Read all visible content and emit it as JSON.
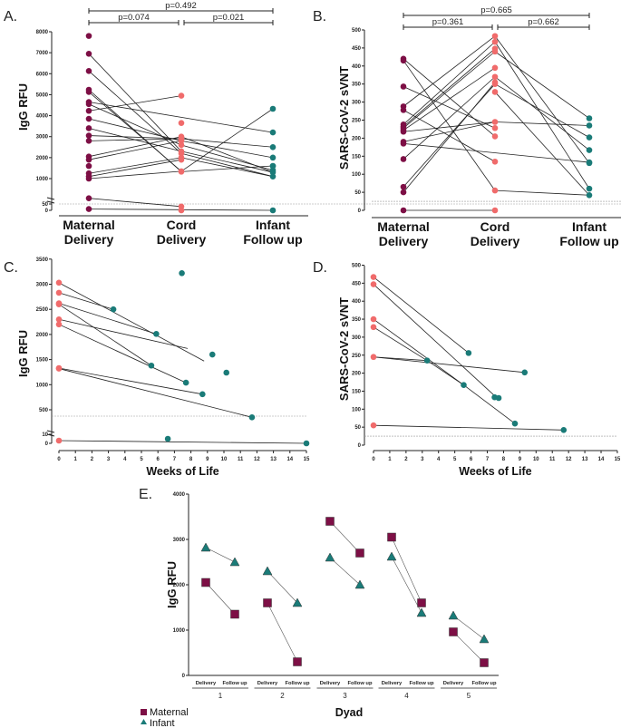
{
  "colors": {
    "maternal": "#7d0f45",
    "cord": "#f06b6b",
    "infant": "#1a7b78",
    "line": "#222222",
    "threshold": "#999999"
  },
  "chart_data": [
    {
      "panel": "A.",
      "type": "scatter",
      "ylabel": "IgG RFU",
      "categories": [
        "Maternal Delivery",
        "Cord Delivery",
        "Infant Follow up"
      ],
      "category_lines": [
        [
          "Maternal",
          "Delivery"
        ],
        [
          "Cord",
          "Delivery"
        ],
        [
          "Infant",
          "Follow up"
        ]
      ],
      "yticks": [
        0,
        50,
        1000,
        2000,
        3000,
        4000,
        5000,
        6000,
        7000,
        8000
      ],
      "axis_break": [
        50,
        1000
      ],
      "threshold": 50,
      "comparisons": [
        {
          "from": 0,
          "to": 2,
          "label": "p=0.492"
        },
        {
          "from": 0,
          "to": 1,
          "label": "p=0.074"
        },
        {
          "from": 1,
          "to": 2,
          "label": "p=0.021"
        }
      ],
      "points": [
        [
          7800,
          6950,
          6130,
          5130,
          4650,
          4550,
          4230,
          3850,
          3400,
          3050,
          2800,
          2050,
          1900,
          1600,
          1250,
          1100,
          1000,
          950,
          95,
          10
        ],
        [
          4950,
          3650,
          3000,
          2900,
          2800,
          2600,
          2300,
          2200,
          2000,
          1900,
          1350,
          1330,
          30,
          0
        ],
        [
          3200,
          2500,
          2000,
          1600,
          1400,
          1300,
          1100,
          800,
          350,
          0
        ]
      ],
      "segments": [
        [
          [
            0,
            6950
          ],
          [
            1,
            2300
          ]
        ],
        [
          [
            1,
            2300
          ],
          [
            2,
            1300
          ]
        ],
        [
          [
            0,
            6130
          ],
          [
            1,
            2200
          ]
        ],
        [
          [
            1,
            2200
          ],
          [
            2,
            1100
          ]
        ],
        [
          [
            0,
            5130
          ],
          [
            1,
            1350
          ]
        ],
        [
          [
            1,
            1350
          ],
          [
            2,
            800
          ]
        ],
        [
          [
            0,
            4650
          ],
          [
            2,
            3200
          ]
        ],
        [
          [
            0,
            4550
          ],
          [
            1,
            2600
          ]
        ],
        [
          [
            1,
            2600
          ],
          [
            2,
            1400
          ]
        ],
        [
          [
            0,
            4230
          ],
          [
            1,
            4950
          ]
        ],
        [
          [
            0,
            3850
          ],
          [
            1,
            2800
          ]
        ],
        [
          [
            1,
            2800
          ],
          [
            2,
            2000
          ]
        ],
        [
          [
            0,
            3400
          ],
          [
            1,
            2300
          ]
        ],
        [
          [
            0,
            3050
          ],
          [
            1,
            2900
          ]
        ],
        [
          [
            1,
            2900
          ],
          [
            2,
            2500
          ]
        ],
        [
          [
            0,
            2800
          ],
          [
            1,
            2900
          ]
        ],
        [
          [
            0,
            2050
          ],
          [
            1,
            3000
          ]
        ],
        [
          [
            1,
            3000
          ],
          [
            2,
            1300
          ]
        ],
        [
          [
            0,
            1900
          ],
          [
            1,
            2800
          ]
        ],
        [
          [
            0,
            1250
          ],
          [
            1,
            2000
          ]
        ],
        [
          [
            1,
            2000
          ],
          [
            2,
            1100
          ]
        ],
        [
          [
            0,
            1100
          ],
          [
            1,
            1900
          ]
        ],
        [
          [
            0,
            1000
          ],
          [
            1,
            1350
          ]
        ],
        [
          [
            1,
            1330
          ],
          [
            2,
            350
          ]
        ],
        [
          [
            0,
            950
          ],
          [
            1,
            1330
          ]
        ],
        [
          [
            0,
            95
          ],
          [
            1,
            30
          ]
        ],
        [
          [
            0,
            10
          ],
          [
            2,
            0
          ]
        ]
      ]
    },
    {
      "panel": "B.",
      "type": "scatter",
      "ylabel": "SARS-CoV-2 sVNT",
      "categories": [
        "Maternal Delivery",
        "Cord Delivery",
        "Infant Follow up"
      ],
      "category_lines": [
        [
          "Maternal",
          "Delivery"
        ],
        [
          "Cord",
          "Delivery"
        ],
        [
          "Infant",
          "Follow up"
        ]
      ],
      "yticks": [
        0,
        50,
        100,
        150,
        200,
        250,
        300,
        350,
        400,
        450,
        500
      ],
      "threshold": 25,
      "comparisons": [
        {
          "from": 0,
          "to": 2,
          "label": "p=0.665"
        },
        {
          "from": 0,
          "to": 1,
          "label": "p=0.361"
        },
        {
          "from": 1,
          "to": 2,
          "label": "p=0.662"
        }
      ],
      "points": [
        [
          420,
          415,
          343,
          288,
          278,
          238,
          232,
          228,
          222,
          218,
          190,
          185,
          142,
          65,
          50,
          0
        ],
        [
          483,
          467,
          448,
          440,
          395,
          370,
          355,
          350,
          328,
          245,
          228,
          205,
          135,
          55,
          0
        ],
        [
          255,
          235,
          202,
          167,
          133,
          131,
          60,
          42
        ]
      ],
      "segments": [
        [
          [
            0,
            420
          ],
          [
            1,
            205
          ]
        ],
        [
          [
            0,
            415
          ],
          [
            1,
            55
          ]
        ],
        [
          [
            0,
            343
          ],
          [
            1,
            228
          ]
        ],
        [
          [
            0,
            288
          ],
          [
            1,
            483
          ]
        ],
        [
          [
            0,
            278
          ],
          [
            1,
            135
          ]
        ],
        [
          [
            0,
            238
          ],
          [
            1,
            467
          ]
        ],
        [
          [
            0,
            232
          ],
          [
            1,
            448
          ]
        ],
        [
          [
            0,
            228
          ],
          [
            1,
            440
          ]
        ],
        [
          [
            0,
            222
          ],
          [
            1,
            395
          ]
        ],
        [
          [
            0,
            218
          ],
          [
            1,
            245
          ]
        ],
        [
          [
            0,
            190
          ],
          [
            1,
            245
          ]
        ],
        [
          [
            0,
            185
          ],
          [
            2,
            133
          ]
        ],
        [
          [
            0,
            142
          ],
          [
            1,
            370
          ]
        ],
        [
          [
            0,
            65
          ],
          [
            1,
            350
          ]
        ],
        [
          [
            0,
            50
          ],
          [
            1,
            355
          ]
        ],
        [
          [
            0,
            0
          ],
          [
            1,
            0
          ]
        ],
        [
          [
            1,
            483
          ],
          [
            2,
            131
          ]
        ],
        [
          [
            1,
            467
          ],
          [
            2,
            60
          ]
        ],
        [
          [
            1,
            440
          ],
          [
            2,
            255
          ]
        ],
        [
          [
            1,
            328
          ],
          [
            2,
            42
          ]
        ],
        [
          [
            1,
            245
          ],
          [
            2,
            235
          ]
        ],
        [
          [
            1,
            350
          ],
          [
            2,
            202
          ]
        ],
        [
          [
            1,
            55
          ],
          [
            2,
            42
          ]
        ],
        [
          [
            1,
            370
          ],
          [
            2,
            167
          ]
        ]
      ]
    },
    {
      "panel": "C.",
      "type": "scatter",
      "ylabel": "IgG RFU",
      "xlabel": "Weeks of Life",
      "xticks": [
        0,
        1,
        2,
        3,
        4,
        5,
        6,
        7,
        8,
        9,
        10,
        11,
        12,
        13,
        14,
        15
      ],
      "yticks": [
        0,
        10,
        500,
        1000,
        1500,
        2000,
        2500,
        3000,
        3500
      ],
      "axis_break": [
        10,
        500
      ],
      "threshold": 50,
      "cord_points": [
        [
          0,
          3030
        ],
        [
          0,
          2830
        ],
        [
          0,
          2620
        ],
        [
          0,
          2600
        ],
        [
          0,
          2300
        ],
        [
          0,
          2200
        ],
        [
          0,
          1330
        ],
        [
          0,
          1320
        ],
        [
          0,
          3
        ]
      ],
      "infant_points": [
        [
          3.3,
          2500
        ],
        [
          5.9,
          2010
        ],
        [
          7.45,
          3220
        ],
        [
          9.3,
          1600
        ],
        [
          10.15,
          1240
        ],
        [
          5.6,
          1380
        ],
        [
          7.7,
          1040
        ],
        [
          8.7,
          810
        ],
        [
          11.7,
          350
        ],
        [
          6.6,
          5
        ],
        [
          15,
          0
        ]
      ],
      "segments": [
        [
          [
            0,
            3030
          ],
          [
            8.8,
            1470
          ]
        ],
        [
          [
            0,
            2830
          ],
          [
            3.3,
            2500
          ]
        ],
        [
          [
            0,
            2620
          ],
          [
            5.9,
            2010
          ]
        ],
        [
          [
            0,
            2600
          ],
          [
            5.6,
            1380
          ]
        ],
        [
          [
            0,
            2300
          ],
          [
            7.8,
            1720
          ]
        ],
        [
          [
            0,
            2200
          ],
          [
            7.7,
            1040
          ]
        ],
        [
          [
            0,
            1330
          ],
          [
            8.7,
            810
          ]
        ],
        [
          [
            0,
            1320
          ],
          [
            11.7,
            350
          ]
        ],
        [
          [
            0,
            3
          ],
          [
            15,
            0
          ]
        ]
      ]
    },
    {
      "panel": "D.",
      "type": "scatter",
      "ylabel": "SARS-CoV-2 sVNT",
      "xlabel": "Weeks of Life",
      "xticks": [
        0,
        1,
        2,
        3,
        4,
        5,
        6,
        7,
        8,
        9,
        10,
        11,
        12,
        13,
        14,
        15
      ],
      "yticks": [
        0,
        50,
        100,
        150,
        200,
        250,
        300,
        350,
        400,
        450,
        500
      ],
      "threshold": 25,
      "cord_points": [
        [
          0,
          467
        ],
        [
          0,
          447
        ],
        [
          0,
          350
        ],
        [
          0,
          328
        ],
        [
          0,
          245
        ],
        [
          0,
          55
        ]
      ],
      "infant_points": [
        [
          5.85,
          256
        ],
        [
          3.3,
          235
        ],
        [
          9.3,
          202
        ],
        [
          5.55,
          167
        ],
        [
          7.45,
          133
        ],
        [
          7.7,
          131
        ],
        [
          8.7,
          60
        ],
        [
          11.7,
          42
        ]
      ],
      "segments": [
        [
          [
            0,
            467
          ],
          [
            5.85,
            256
          ]
        ],
        [
          [
            0,
            447
          ],
          [
            7.55,
            133
          ]
        ],
        [
          [
            0,
            350
          ],
          [
            5.55,
            167
          ]
        ],
        [
          [
            5.55,
            167
          ],
          [
            8.7,
            60
          ]
        ],
        [
          [
            0,
            328
          ],
          [
            3.3,
            235
          ]
        ],
        [
          [
            3.3,
            235
          ],
          [
            5.55,
            167
          ]
        ],
        [
          [
            0,
            245
          ],
          [
            9.3,
            202
          ]
        ],
        [
          [
            0,
            245
          ],
          [
            3.3,
            235
          ]
        ],
        [
          [
            0,
            55
          ],
          [
            11.7,
            42
          ]
        ]
      ]
    },
    {
      "panel": "E.",
      "type": "line",
      "ylabel": "IgG RFU",
      "xlabel": "Dyad",
      "yticks": [
        0,
        1000,
        2000,
        3000,
        4000
      ],
      "timepoints": [
        "Delivery",
        "Follow up"
      ],
      "dyads": [
        "1",
        "2",
        "3",
        "4",
        "5"
      ],
      "legend": [
        {
          "name": "Maternal",
          "marker": "square"
        },
        {
          "name": "Infant",
          "marker": "triangle"
        }
      ],
      "legend_position": "bottom-left",
      "series": [
        {
          "name": "Maternal",
          "values": [
            [
              2050,
              1350
            ],
            [
              1600,
              300
            ],
            [
              3400,
              2700
            ],
            [
              3050,
              1600
            ],
            [
              960,
              280
            ]
          ]
        },
        {
          "name": "Infant",
          "values": [
            [
              2820,
              2500
            ],
            [
              2300,
              1600
            ],
            [
              2600,
              2000
            ],
            [
              2620,
              1380
            ],
            [
              1320,
              800
            ]
          ]
        }
      ]
    }
  ]
}
